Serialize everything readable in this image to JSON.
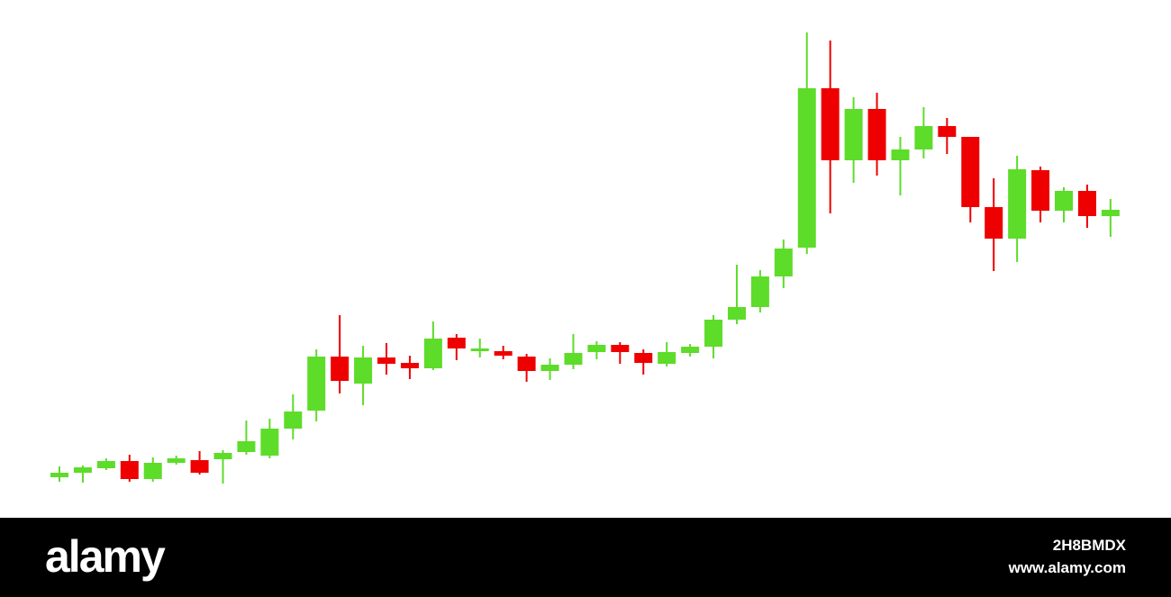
{
  "chart_data": {
    "type": "candlestick",
    "open": [
      45,
      50,
      55,
      63,
      43,
      61,
      64,
      65,
      73,
      69,
      99,
      119,
      179,
      149,
      178,
      172,
      166,
      200,
      185,
      185,
      179,
      163,
      170,
      184,
      192,
      183,
      171,
      183,
      190,
      220,
      234,
      268,
      300,
      477,
      397,
      454,
      397,
      409,
      435,
      423,
      345,
      310,
      386,
      341,
      363,
      335
    ],
    "high": [
      57,
      58,
      66,
      70,
      67,
      69,
      74,
      75,
      108,
      110,
      137,
      187,
      225,
      191,
      194,
      180,
      218,
      204,
      199,
      191,
      182,
      177,
      204,
      196,
      195,
      187,
      195,
      193,
      225,
      281,
      275,
      309,
      539,
      530,
      467,
      472,
      423,
      456,
      444,
      423,
      377,
      402,
      390,
      367,
      370,
      354
    ],
    "low": [
      40,
      39,
      53,
      40,
      40,
      59,
      48,
      38,
      70,
      66,
      87,
      107,
      138,
      125,
      159,
      154,
      164,
      175,
      178,
      176,
      151,
      153,
      165,
      176,
      171,
      159,
      168,
      179,
      177,
      215,
      228,
      255,
      293,
      338,
      372,
      380,
      358,
      399,
      404,
      328,
      274,
      284,
      328,
      328,
      322,
      312
    ],
    "close": [
      50,
      56,
      63,
      43,
      61,
      66,
      50,
      72,
      85,
      99,
      118,
      179,
      152,
      178,
      171,
      166,
      199,
      188,
      188,
      180,
      163,
      170,
      183,
      192,
      184,
      172,
      184,
      190,
      220,
      234,
      268,
      299,
      477,
      397,
      454,
      397,
      409,
      435,
      423,
      345,
      310,
      387,
      341,
      363,
      335,
      342
    ],
    "up_color": "#5ddc2a",
    "down_color": "#ee0000",
    "ylim": [
      0,
      575
    ]
  },
  "watermark": {
    "logo": "alamy",
    "id": "2H8BMDX",
    "url": "www.alamy.com"
  }
}
